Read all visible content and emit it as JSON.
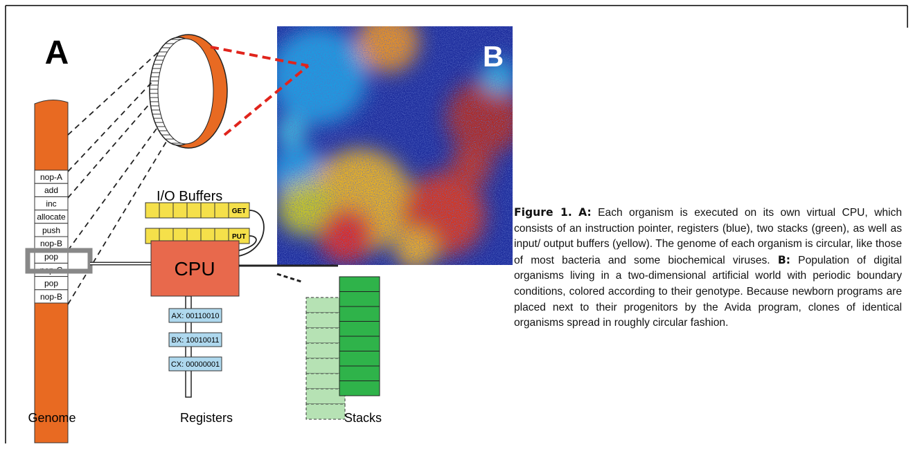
{
  "panel_a": {
    "label": "A",
    "genome": {
      "instructions": [
        "nop-A",
        "add",
        "inc",
        "allocate",
        "push",
        "nop-B",
        "pop",
        "nop-C",
        "pop",
        "nop-B"
      ],
      "label": "Genome"
    },
    "io_buffers": {
      "title": "I/O Buffers",
      "get": "GET",
      "put": "PUT"
    },
    "cpu": "CPU",
    "registers": {
      "values": [
        "AX: 00110010",
        "BX: 10010011",
        "CX: 00000001"
      ],
      "label": "Registers"
    },
    "stacks_label": "Stacks"
  },
  "panel_b": {
    "label": "B"
  },
  "caption": {
    "figure_label": "Figure 1.",
    "a_label": "A:",
    "a_text": "Each organism is executed on its own virtual CPU, which consists of an instruction pointer, registers (blue), two stacks (green), as well as input/ output buffers (yellow). The genome of each organism is circular, like those of most bacteria and some biochemical viruses.",
    "b_label": "B:",
    "b_text": "Population of digital organisms living in a two-dimensional artificial world with periodic boundary conditions, colored according to their genotype. Because newborn programs are placed next to their progenitors by the Avida program, clones of identical organisms spread in roughly circular fashion."
  }
}
